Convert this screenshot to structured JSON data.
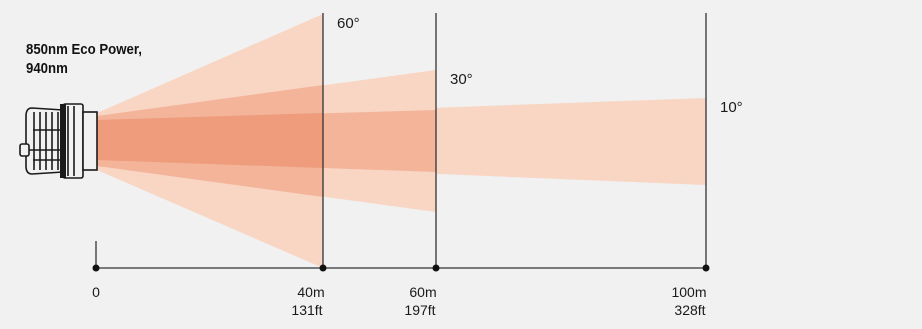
{
  "title_lines": [
    "850nm Eco Power,",
    "940nm"
  ],
  "beams": [
    {
      "angle_label": "60°",
      "distance_label": "40m",
      "distance_ft": "131ft",
      "distance_m": 40
    },
    {
      "angle_label": "30°",
      "distance_label": "60m",
      "distance_ft": "197ft",
      "distance_m": 60
    },
    {
      "angle_label": "10°",
      "distance_label": "100m",
      "distance_ft": "328ft",
      "distance_m": 100
    }
  ],
  "origin_label": "0",
  "colors": {
    "background": "#f1f1f1",
    "beam_light": "#f9d5c4",
    "beam_mid": "#f3b49a",
    "beam_dark": "#ee9c7b",
    "axis": "#222222",
    "device": "#1a1a1a"
  }
}
